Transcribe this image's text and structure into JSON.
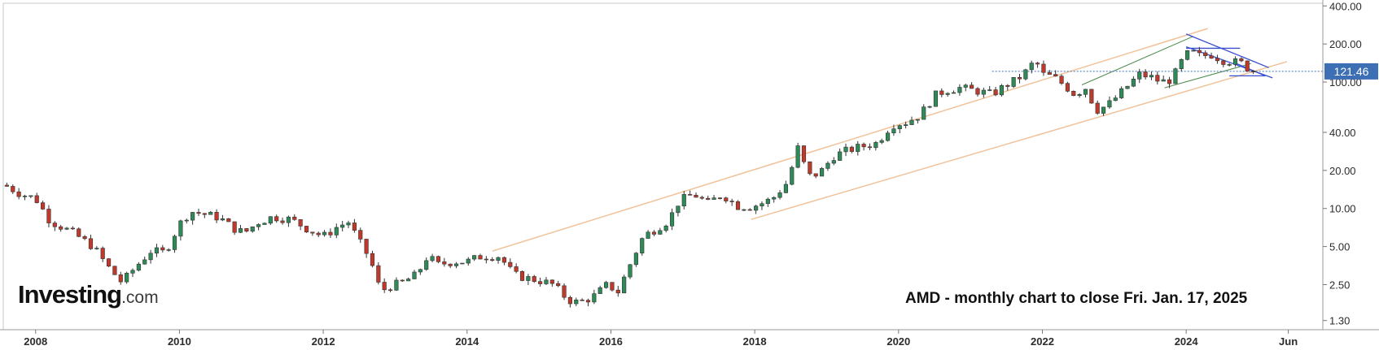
{
  "caption": "AMD - monthly chart to close Fri. Jan. 17, 2025",
  "logo": {
    "main": "Investing",
    "suffix": ".com"
  },
  "last_price": {
    "label": "121.46",
    "value": 121.46
  },
  "colors": {
    "up": "#2e8b57",
    "down": "#c0392b",
    "channel": "#f0c29a",
    "trend_blue": "#3a4fd0",
    "trend_green": "#4a8a4a",
    "price_tag": "#3d6fb5",
    "grid": "#d8d8d8"
  },
  "chart_data": {
    "type": "candlestick",
    "title": "",
    "y_scale": "log",
    "ylim": [
      1.1,
      420
    ],
    "xlim": [
      2007.55,
      2025.9
    ],
    "y_ticks": [
      {
        "value": 400,
        "label": "400.00"
      },
      {
        "value": 200,
        "label": "200.00"
      },
      {
        "value": 100,
        "label": "100.00"
      },
      {
        "value": 40,
        "label": "40.00"
      },
      {
        "value": 20,
        "label": "20.00"
      },
      {
        "value": 10,
        "label": "10.00"
      },
      {
        "value": 5,
        "label": "5.00"
      },
      {
        "value": 2.5,
        "label": "2.50"
      },
      {
        "value": 1.3,
        "label": "1.30"
      }
    ],
    "x_ticks": [
      {
        "value": 2008,
        "label": "2008"
      },
      {
        "value": 2010,
        "label": "2010"
      },
      {
        "value": 2012,
        "label": "2012"
      },
      {
        "value": 2014,
        "label": "2014"
      },
      {
        "value": 2016,
        "label": "2016"
      },
      {
        "value": 2018,
        "label": "2018"
      },
      {
        "value": 2020,
        "label": "2020"
      },
      {
        "value": 2022,
        "label": "2022"
      },
      {
        "value": 2024,
        "label": "2024"
      },
      {
        "value": 2025.42,
        "label": "Jun"
      }
    ],
    "close_path": [
      [
        2007.6,
        15
      ],
      [
        2007.8,
        13
      ],
      [
        2008.0,
        12
      ],
      [
        2008.2,
        8
      ],
      [
        2008.5,
        6.5
      ],
      [
        2008.8,
        5
      ],
      [
        2009.0,
        3.5
      ],
      [
        2009.2,
        2.6
      ],
      [
        2009.4,
        3.5
      ],
      [
        2009.6,
        4.6
      ],
      [
        2009.8,
        4.5
      ],
      [
        2010.0,
        7.5
      ],
      [
        2010.15,
        9.5
      ],
      [
        2010.35,
        9
      ],
      [
        2010.55,
        8.5
      ],
      [
        2010.75,
        7
      ],
      [
        2010.9,
        6.4
      ],
      [
        2011.1,
        7.8
      ],
      [
        2011.3,
        8.6
      ],
      [
        2011.55,
        8.2
      ],
      [
        2011.8,
        6.8
      ],
      [
        2012.0,
        6
      ],
      [
        2012.2,
        7.2
      ],
      [
        2012.35,
        7.8
      ],
      [
        2012.5,
        5.5
      ],
      [
        2012.65,
        4
      ],
      [
        2012.8,
        2.2
      ],
      [
        2012.9,
        2.4
      ],
      [
        2013.1,
        2.6
      ],
      [
        2013.3,
        3
      ],
      [
        2013.45,
        4.2
      ],
      [
        2013.6,
        3.6
      ],
      [
        2013.8,
        3.8
      ],
      [
        2014.0,
        3.8
      ],
      [
        2014.2,
        4.2
      ],
      [
        2014.45,
        4.2
      ],
      [
        2014.65,
        3
      ],
      [
        2014.85,
        2.8
      ],
      [
        2015.0,
        2.7
      ],
      [
        2015.2,
        2.5
      ],
      [
        2015.4,
        1.9
      ],
      [
        2015.55,
        1.8
      ],
      [
        2015.75,
        2
      ],
      [
        2015.95,
        2.5
      ],
      [
        2016.1,
        2.2
      ],
      [
        2016.3,
        4
      ],
      [
        2016.45,
        6
      ],
      [
        2016.6,
        6.8
      ],
      [
        2016.8,
        8
      ],
      [
        2016.95,
        11.5
      ],
      [
        2017.15,
        13
      ],
      [
        2017.35,
        11
      ],
      [
        2017.55,
        13
      ],
      [
        2017.75,
        10.5
      ],
      [
        2017.95,
        10.3
      ],
      [
        2018.1,
        11
      ],
      [
        2018.25,
        12
      ],
      [
        2018.45,
        16
      ],
      [
        2018.6,
        30
      ],
      [
        2018.75,
        18
      ],
      [
        2018.9,
        19
      ],
      [
        2019.1,
        26
      ],
      [
        2019.3,
        29
      ],
      [
        2019.5,
        31
      ],
      [
        2019.7,
        33
      ],
      [
        2019.9,
        46
      ],
      [
        2020.1,
        48
      ],
      [
        2020.3,
        55
      ],
      [
        2020.5,
        78
      ],
      [
        2020.65,
        86
      ],
      [
        2020.85,
        90
      ],
      [
        2021.1,
        85
      ],
      [
        2021.3,
        80
      ],
      [
        2021.5,
        95
      ],
      [
        2021.65,
        105
      ],
      [
        2021.8,
        125
      ],
      [
        2021.9,
        150
      ],
      [
        2022.0,
        115
      ],
      [
        2022.15,
        110
      ],
      [
        2022.3,
        95
      ],
      [
        2022.45,
        80
      ],
      [
        2022.6,
        90
      ],
      [
        2022.75,
        60
      ],
      [
        2022.9,
        65
      ],
      [
        2023.05,
        78
      ],
      [
        2023.2,
        95
      ],
      [
        2023.35,
        115
      ],
      [
        2023.5,
        110
      ],
      [
        2023.65,
        100
      ],
      [
        2023.8,
        105
      ],
      [
        2023.95,
        150
      ],
      [
        2024.05,
        175
      ],
      [
        2024.2,
        160
      ],
      [
        2024.35,
        165
      ],
      [
        2024.5,
        150
      ],
      [
        2024.65,
        145
      ],
      [
        2024.8,
        140
      ],
      [
        2024.9,
        120
      ],
      [
        2025.0,
        121.46
      ]
    ],
    "lines": [
      {
        "name": "upper channel",
        "x1": 2014.35,
        "y1": 4.6,
        "x2": 2024.3,
        "y2": 265
      },
      {
        "name": "lower channel",
        "x1": 2017.95,
        "y1": 8.2,
        "x2": 2025.4,
        "y2": 145
      },
      {
        "name": "green channel upper",
        "x1": 2022.55,
        "y1": 95,
        "x2": 2024.1,
        "y2": 230
      },
      {
        "name": "green channel lower",
        "x1": 2023.7,
        "y1": 90,
        "x2": 2024.9,
        "y2": 140
      },
      {
        "name": "triangle top",
        "x1": 2024.0,
        "y1": 240,
        "x2": 2025.15,
        "y2": 130
      },
      {
        "name": "triangle bottom",
        "x1": 2024.0,
        "y1": 190,
        "x2": 2025.2,
        "y2": 108
      },
      {
        "name": "flag top",
        "x1": 2024.7,
        "y1": 140,
        "x2": 2025.1,
        "y2": 112
      },
      {
        "name": "horizontal resistance",
        "x1": 2024.0,
        "y1": 185,
        "x2": 2024.75,
        "y2": 185
      },
      {
        "name": "horizontal support",
        "x1": 2024.6,
        "y1": 112,
        "x2": 2025.1,
        "y2": 112
      }
    ]
  }
}
